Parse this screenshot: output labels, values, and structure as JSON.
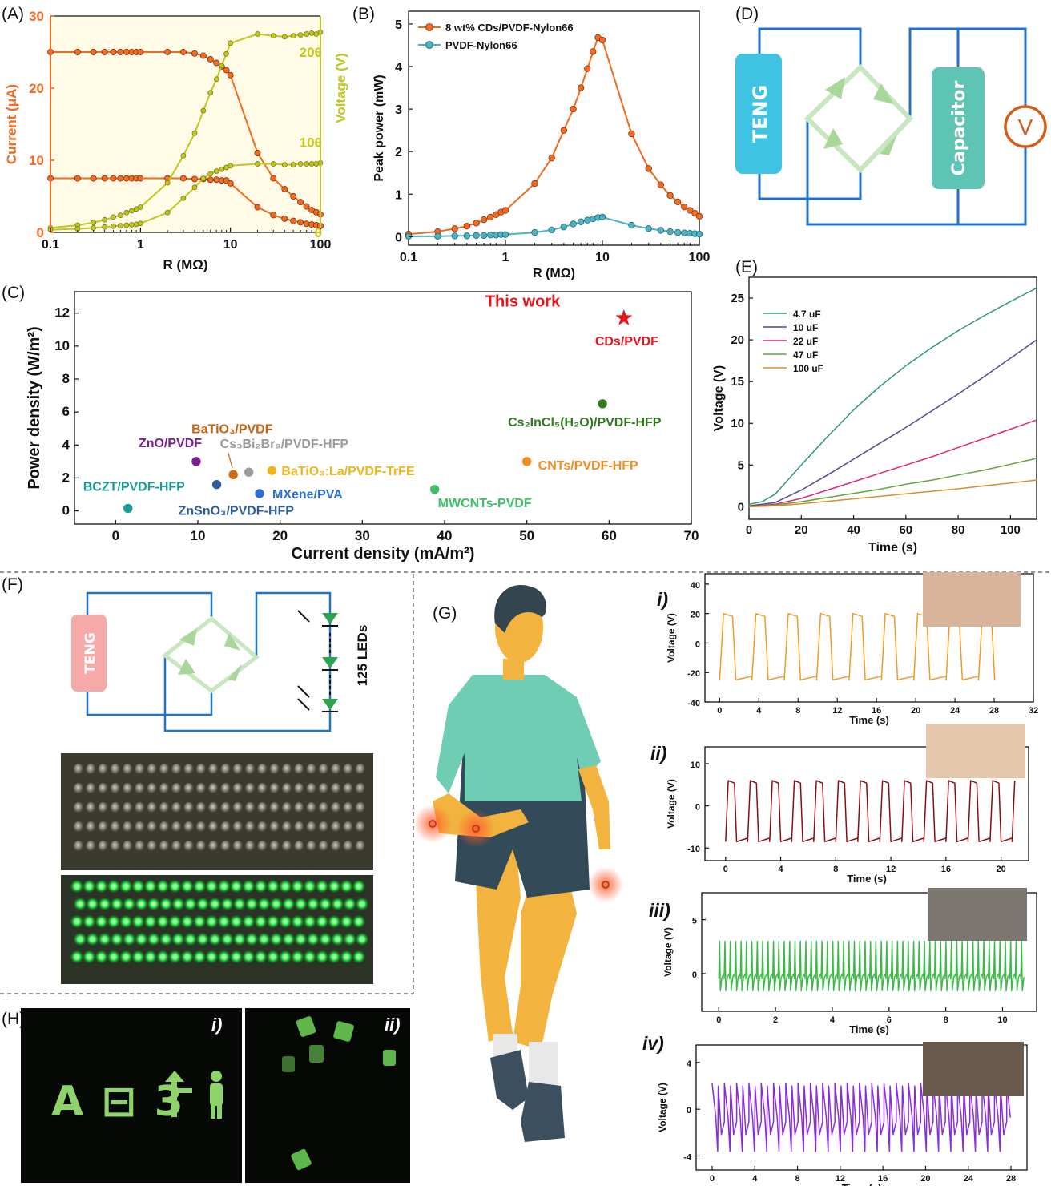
{
  "panels": {
    "A": {
      "label": "(A)"
    },
    "B": {
      "label": "(B)"
    },
    "C": {
      "label": "(C)"
    },
    "D": {
      "label": "(D)"
    },
    "E": {
      "label": "(E)"
    },
    "F": {
      "label": "(F)"
    },
    "G": {
      "label": "(G)"
    },
    "H": {
      "label": "(H)"
    }
  },
  "diagram_D": {
    "teng": "TENG",
    "capacitor": "Capacitor",
    "meter": "V"
  },
  "diagram_F": {
    "teng": "TENG",
    "leds": "125 LEDs"
  },
  "photos_H": {
    "i_label": "i)",
    "ii_label": "ii)",
    "glyphs": "A ⊟ 3"
  },
  "colors": {
    "orange": "#f26b21",
    "olive": "#c3c61f",
    "teal": "#4bb3c3",
    "red": "#e8141c"
  },
  "chart_data": [
    {
      "id": "A",
      "type": "line",
      "xlabel": "R (MΩ)",
      "xscale": "log",
      "xlim": [
        0.1,
        100
      ],
      "xticks": [
        "0.1",
        "1",
        "10",
        "100"
      ],
      "ylabel": "Current (μA)",
      "ylim": [
        0,
        30
      ],
      "yticks": [
        "0",
        "10",
        "20",
        "30"
      ],
      "y2label": "Voltage (V)",
      "y2lim": [
        0,
        240
      ],
      "y2ticks": [
        "0",
        "100",
        "200"
      ],
      "x": [
        0.1,
        0.2,
        0.3,
        0.4,
        0.5,
        0.6,
        0.7,
        0.8,
        0.9,
        1,
        2,
        3,
        4,
        5,
        6,
        7,
        8,
        9,
        10,
        20,
        30,
        40,
        50,
        60,
        70,
        80,
        90,
        100
      ],
      "series": [
        {
          "axis": "left",
          "values": [
            25,
            25,
            25,
            25,
            25,
            25,
            25,
            25,
            25,
            25,
            25,
            25,
            24.8,
            24.5,
            24,
            23.5,
            23,
            22.5,
            21.8,
            11,
            7.5,
            6,
            5,
            4.2,
            3.6,
            3.1,
            2.8,
            2.5
          ]
        },
        {
          "axis": "left",
          "values": [
            7.5,
            7.5,
            7.5,
            7.5,
            7.5,
            7.5,
            7.5,
            7.5,
            7.5,
            7.5,
            7.5,
            7.5,
            7.4,
            7.4,
            7.3,
            7.3,
            7.2,
            7.2,
            6.8,
            3.5,
            2.4,
            1.9,
            1.6,
            1.4,
            1.2,
            1.1,
            1.0,
            0.9
          ]
        },
        {
          "axis": "right",
          "values": [
            5,
            8,
            11,
            14,
            17,
            19,
            22,
            24,
            26,
            28,
            55,
            85,
            110,
            135,
            155,
            170,
            185,
            198,
            210,
            220,
            218,
            217,
            218,
            219,
            220,
            221,
            220,
            222
          ]
        },
        {
          "axis": "right",
          "values": [
            3,
            4,
            5,
            6,
            7,
            7.5,
            8,
            8.5,
            9,
            10,
            22,
            38,
            50,
            60,
            65,
            68,
            70,
            72,
            74,
            76,
            76,
            75,
            75,
            76,
            76,
            76,
            76,
            77
          ]
        }
      ]
    },
    {
      "id": "B",
      "type": "line",
      "xlabel": "R (MΩ)",
      "xscale": "log",
      "xlim": [
        0.1,
        100
      ],
      "xticks": [
        "0.1",
        "1",
        "10",
        "100"
      ],
      "ylabel": "Peak power (mW)",
      "ylim": [
        -0.2,
        5.3
      ],
      "yticks": [
        "0",
        "1",
        "2",
        "3",
        "4",
        "5"
      ],
      "x": [
        0.1,
        0.2,
        0.3,
        0.4,
        0.5,
        0.6,
        0.7,
        0.8,
        0.9,
        1,
        2,
        3,
        4,
        5,
        6,
        7,
        8,
        9,
        10,
        20,
        30,
        40,
        50,
        60,
        70,
        80,
        90,
        100
      ],
      "series": [
        {
          "name": "8 wt% CDs/PVDF-Nylon66",
          "values": [
            0.06,
            0.12,
            0.19,
            0.25,
            0.32,
            0.4,
            0.46,
            0.52,
            0.58,
            0.62,
            1.25,
            1.85,
            2.5,
            3.0,
            3.5,
            3.95,
            4.35,
            4.68,
            4.62,
            2.42,
            1.6,
            1.22,
            0.97,
            0.82,
            0.7,
            0.62,
            0.55,
            0.48
          ]
        },
        {
          "name": "PVDF-Nylon66",
          "values": [
            0.01,
            0.01,
            0.02,
            0.02,
            0.03,
            0.03,
            0.04,
            0.04,
            0.05,
            0.05,
            0.1,
            0.16,
            0.23,
            0.3,
            0.35,
            0.39,
            0.42,
            0.45,
            0.46,
            0.27,
            0.19,
            0.15,
            0.12,
            0.1,
            0.09,
            0.08,
            0.07,
            0.06
          ]
        }
      ]
    },
    {
      "id": "C",
      "type": "scatter",
      "xlabel": "Current density (mA/m²)",
      "ylabel": "Power density (W/m²)",
      "xlim": [
        -5,
        70
      ],
      "ylim": [
        -0.8,
        13.3
      ],
      "xticks": [
        "0",
        "10",
        "20",
        "30",
        "40",
        "50",
        "60",
        "70"
      ],
      "yticks": [
        "0",
        "2",
        "4",
        "6",
        "8",
        "10",
        "12"
      ],
      "annotation": "This work",
      "points": [
        {
          "label": "BCZT/PVDF-HFP",
          "x": 1.5,
          "y": 0.15,
          "color": "#1a9c98"
        },
        {
          "label": "ZnO/PVDF",
          "x": 9.8,
          "y": 3.0,
          "color": "#7a1e8f"
        },
        {
          "label": "ZnSnO₃/PVDF-HFP",
          "x": 12.3,
          "y": 1.6,
          "color": "#2f5d9b"
        },
        {
          "label": "BaTiO₃/PVDF",
          "x": 14.3,
          "y": 2.2,
          "color": "#d06a12"
        },
        {
          "label": "Cs₃Bi₂Br₉/PVDF-HFP",
          "x": 16.2,
          "y": 2.35,
          "color": "#9a9a9a"
        },
        {
          "label": "MXene/PVA",
          "x": 17.5,
          "y": 1.05,
          "color": "#2a6fd6"
        },
        {
          "label": "BaTiO₃:La/PVDF-TrFE",
          "x": 19.0,
          "y": 2.45,
          "color": "#f0b51b"
        },
        {
          "label": "MWCNTs-PVDF",
          "x": 38.8,
          "y": 1.3,
          "color": "#3cbf66"
        },
        {
          "label": "CNTs/PVDF-HFP",
          "x": 50.0,
          "y": 3.0,
          "color": "#f58a1f"
        },
        {
          "label": "Cs₂InCl₅(H₂O)/PVDF-HFP",
          "x": 59.2,
          "y": 6.5,
          "color": "#2f7a1e"
        },
        {
          "label": "CDs/PVDF",
          "x": 61.8,
          "y": 11.7,
          "color": "#e8141c",
          "marker": "star"
        }
      ]
    },
    {
      "id": "E",
      "type": "line",
      "xlabel": "Time (s)",
      "ylabel": "Voltage (V)",
      "xlim": [
        0,
        110
      ],
      "ylim": [
        -1.5,
        27.5
      ],
      "xticks": [
        "0",
        "20",
        "40",
        "60",
        "80",
        "100"
      ],
      "yticks": [
        "0",
        "5",
        "10",
        "15",
        "20",
        "25"
      ],
      "series": [
        {
          "name": "4.7 uF",
          "color": "#2b9a70",
          "x": [
            0,
            5,
            10,
            20,
            30,
            40,
            50,
            60,
            70,
            80,
            90,
            100,
            110
          ],
          "values": [
            0.3,
            0.6,
            1.5,
            5.0,
            8.4,
            11.6,
            14.4,
            16.9,
            19.1,
            21.1,
            22.9,
            24.6,
            26.2
          ]
        },
        {
          "name": "10 uF",
          "color": "#4b4d9c",
          "x": [
            0,
            10,
            20,
            30,
            40,
            50,
            60,
            70,
            80,
            90,
            100,
            110
          ],
          "values": [
            0.1,
            0.5,
            2.0,
            3.8,
            5.7,
            7.6,
            9.5,
            11.5,
            13.5,
            15.6,
            17.8,
            20.0
          ]
        },
        {
          "name": "22 uF",
          "color": "#e0257a",
          "x": [
            0,
            10,
            20,
            30,
            40,
            50,
            60,
            70,
            80,
            90,
            100,
            110
          ],
          "values": [
            0,
            0.3,
            1.0,
            2.0,
            3.0,
            4.0,
            5.0,
            6.0,
            7.1,
            8.2,
            9.3,
            10.4
          ]
        },
        {
          "name": "47 uF",
          "color": "#5fa63a",
          "x": [
            0,
            10,
            20,
            30,
            40,
            50,
            60,
            70,
            80,
            90,
            100,
            110
          ],
          "values": [
            0,
            0.2,
            0.6,
            1.1,
            1.6,
            2.1,
            2.7,
            3.2,
            3.8,
            4.4,
            5.1,
            5.8
          ]
        },
        {
          "name": "100 uF",
          "color": "#d98c2e",
          "x": [
            0,
            10,
            20,
            30,
            40,
            50,
            60,
            70,
            80,
            90,
            100,
            110
          ],
          "values": [
            0,
            0.1,
            0.35,
            0.65,
            0.95,
            1.25,
            1.55,
            1.85,
            2.15,
            2.5,
            2.85,
            3.2
          ]
        }
      ]
    },
    {
      "id": "G-i",
      "type": "line",
      "label": "i)",
      "color": "#f39a2b",
      "xlabel": "Time (s)",
      "ylabel": "Voltage (V)",
      "xlim": [
        -1.5,
        32
      ],
      "ylim": [
        -40,
        47
      ],
      "xticks": [
        "0",
        "4",
        "8",
        "12",
        "16",
        "20",
        "24",
        "28",
        "32"
      ],
      "yticks": [
        "-40",
        "-20",
        "0",
        "20",
        "40"
      ],
      "waveform": {
        "t0": 0,
        "t1": 29.5,
        "period": 3.3,
        "high": 20,
        "low": -25,
        "shape": "square"
      }
    },
    {
      "id": "G-ii",
      "type": "line",
      "label": "ii)",
      "color": "#8b0d12",
      "xlabel": "Time (s)",
      "ylabel": "Voltage (V)",
      "xlim": [
        -1.5,
        22
      ],
      "ylim": [
        -13,
        14
      ],
      "xticks": [
        "0",
        "4",
        "8",
        "12",
        "16",
        "20"
      ],
      "yticks": [
        "-10",
        "0",
        "10"
      ],
      "waveform": {
        "t0": 0,
        "t1": 21,
        "period": 1.6,
        "high": 6,
        "low": -8.5,
        "shape": "square"
      }
    },
    {
      "id": "G-iii",
      "type": "line",
      "label": "iii)",
      "color": "#3db94a",
      "xlabel": "Time (s)",
      "ylabel": "Voltage (V)",
      "xlim": [
        -0.6,
        11.2
      ],
      "ylim": [
        -3.5,
        7.5
      ],
      "xticks": [
        "0",
        "2",
        "4",
        "6",
        "8",
        "10"
      ],
      "yticks": [
        "0",
        "5"
      ],
      "waveform": {
        "t0": 0,
        "t1": 10.8,
        "period": 0.19,
        "high": 3.0,
        "low": -1.6,
        "shape": "spike"
      }
    },
    {
      "id": "G-iv",
      "type": "line",
      "label": "iv)",
      "color": "#8a2be2",
      "xlabel": "Time (s)",
      "ylabel": "Voltage (V)",
      "xlim": [
        -1.5,
        29.5
      ],
      "ylim": [
        -5.2,
        5.5
      ],
      "xticks": [
        "0",
        "4",
        "8",
        "12",
        "16",
        "20",
        "24",
        "28"
      ],
      "yticks": [
        "-4",
        "0",
        "4"
      ],
      "waveform": {
        "t0": 0,
        "t1": 28,
        "period": 1.15,
        "high": 2.2,
        "low": -3.6,
        "shape": "bipolar"
      }
    }
  ]
}
